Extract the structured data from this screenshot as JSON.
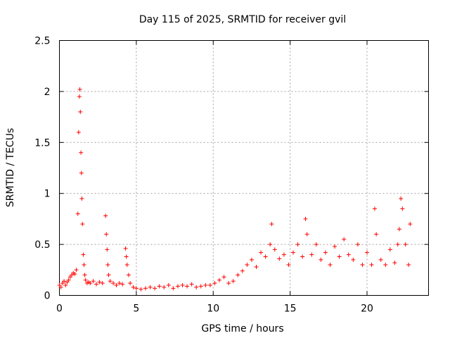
{
  "chart_data": {
    "type": "scatter",
    "title": "Day 115 of 2025, SRMTID for receiver gvil",
    "xlabel": "GPS time / hours",
    "ylabel": "SRMTID / TECUs",
    "xlim": [
      0,
      24
    ],
    "ylim": [
      0,
      2.5
    ],
    "xticks": [
      0,
      5,
      10,
      15,
      20
    ],
    "xtick_labels": [
      "0",
      "5",
      "10",
      "15",
      "20"
    ],
    "yticks": [
      0,
      0.5,
      1,
      1.5,
      2,
      2.5
    ],
    "ytick_labels": [
      "0",
      "0.5",
      "1",
      "1.5",
      "2",
      "2.5"
    ],
    "grid": true,
    "marker": "+",
    "color": "#ff0000",
    "series": [
      {
        "name": "SRMTID",
        "x": [
          0.0,
          0.1,
          0.2,
          0.3,
          0.4,
          0.5,
          0.6,
          0.7,
          0.8,
          0.9,
          1.0,
          1.1,
          1.2,
          1.25,
          1.3,
          1.33,
          1.36,
          1.4,
          1.43,
          1.46,
          1.5,
          1.55,
          1.6,
          1.65,
          1.7,
          1.8,
          1.9,
          2.0,
          2.2,
          2.4,
          2.6,
          2.8,
          3.0,
          3.05,
          3.1,
          3.15,
          3.2,
          3.3,
          3.5,
          3.7,
          3.9,
          4.1,
          4.3,
          4.35,
          4.4,
          4.5,
          4.6,
          4.8,
          5.0,
          5.3,
          5.6,
          5.9,
          6.2,
          6.5,
          6.8,
          7.1,
          7.4,
          7.7,
          8.0,
          8.3,
          8.6,
          8.9,
          9.2,
          9.5,
          9.8,
          10.1,
          10.4,
          10.7,
          11.0,
          11.3,
          11.6,
          11.9,
          12.2,
          12.5,
          12.8,
          13.1,
          13.4,
          13.7,
          13.8,
          14.0,
          14.3,
          14.6,
          14.9,
          15.2,
          15.5,
          15.8,
          16.0,
          16.1,
          16.4,
          16.7,
          17.0,
          17.3,
          17.6,
          17.9,
          18.2,
          18.5,
          18.8,
          19.1,
          19.4,
          19.7,
          20.0,
          20.3,
          20.5,
          20.6,
          20.9,
          21.2,
          21.5,
          21.8,
          22.0,
          22.1,
          22.2,
          22.3,
          22.5,
          22.7,
          22.8
        ],
        "y": [
          0.1,
          0.08,
          0.12,
          0.14,
          0.1,
          0.13,
          0.15,
          0.18,
          0.2,
          0.22,
          0.21,
          0.25,
          0.8,
          1.6,
          1.95,
          2.02,
          1.8,
          1.4,
          1.2,
          0.95,
          0.7,
          0.4,
          0.3,
          0.2,
          0.15,
          0.12,
          0.13,
          0.12,
          0.14,
          0.11,
          0.13,
          0.12,
          0.78,
          0.6,
          0.45,
          0.3,
          0.2,
          0.14,
          0.12,
          0.1,
          0.12,
          0.11,
          0.46,
          0.38,
          0.3,
          0.2,
          0.12,
          0.08,
          0.07,
          0.06,
          0.07,
          0.08,
          0.07,
          0.09,
          0.08,
          0.1,
          0.07,
          0.09,
          0.1,
          0.09,
          0.11,
          0.08,
          0.09,
          0.1,
          0.1,
          0.12,
          0.15,
          0.18,
          0.12,
          0.14,
          0.2,
          0.24,
          0.3,
          0.35,
          0.28,
          0.42,
          0.38,
          0.5,
          0.7,
          0.45,
          0.36,
          0.4,
          0.3,
          0.42,
          0.5,
          0.38,
          0.75,
          0.6,
          0.4,
          0.5,
          0.35,
          0.42,
          0.3,
          0.48,
          0.38,
          0.55,
          0.4,
          0.35,
          0.5,
          0.3,
          0.42,
          0.3,
          0.85,
          0.6,
          0.35,
          0.3,
          0.45,
          0.32,
          0.5,
          0.65,
          0.95,
          0.85,
          0.5,
          0.3,
          0.7
        ]
      }
    ]
  }
}
